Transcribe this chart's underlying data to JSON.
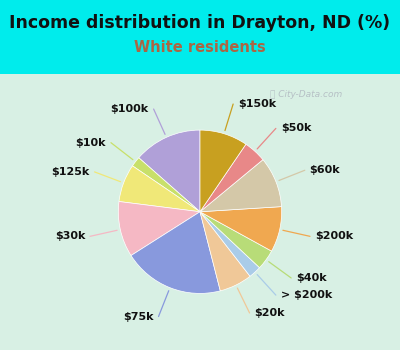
{
  "title": "Income distribution in Drayton, ND (%)",
  "subtitle": "White residents",
  "labels": [
    "$100k",
    "$10k",
    "$125k",
    "$30k",
    "$75k",
    "$20k",
    "> $200k",
    "$40k",
    "$200k",
    "$60k",
    "$50k",
    "$150k"
  ],
  "sizes": [
    13.5,
    2.0,
    7.5,
    11.0,
    20.0,
    6.5,
    2.5,
    4.0,
    9.0,
    10.0,
    4.5,
    9.5
  ],
  "colors": [
    "#b0a0d8",
    "#c8e06a",
    "#f0e878",
    "#f5b8c4",
    "#8899dd",
    "#f0c898",
    "#aacce8",
    "#b8dc78",
    "#f0a850",
    "#d4c8a8",
    "#e88888",
    "#c8a020"
  ],
  "outer_bg": "#00ecec",
  "inner_bg": "#d8f0e4",
  "title_color": "#111111",
  "subtitle_color": "#aa6644",
  "startangle": 90,
  "title_fontsize": 12.5,
  "subtitle_fontsize": 10.5,
  "label_fontsize": 8,
  "watermark_text": "City-Data.com"
}
